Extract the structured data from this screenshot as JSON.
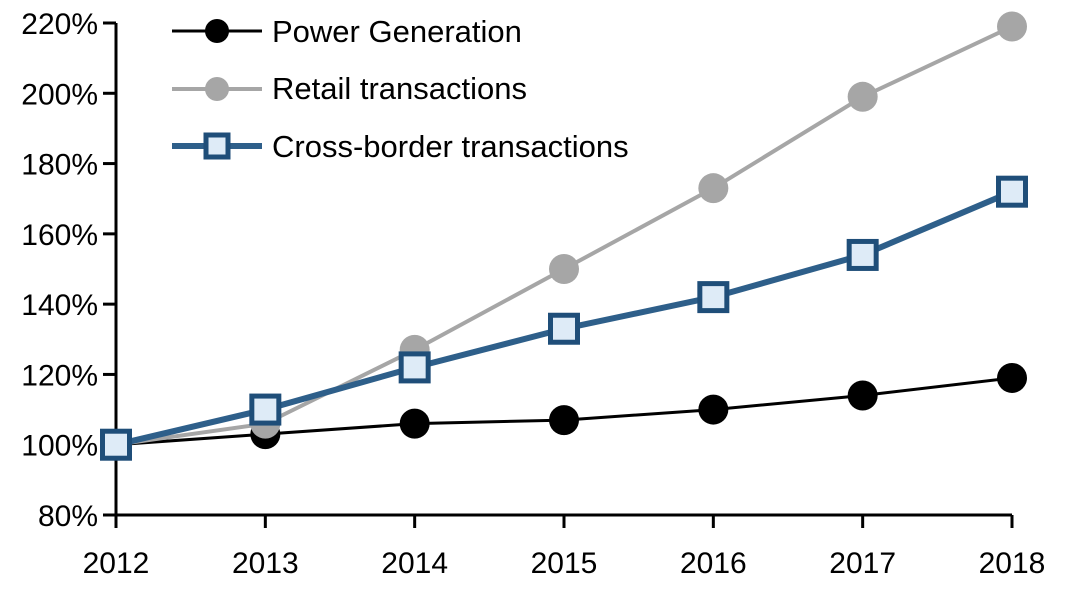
{
  "chart_data": {
    "type": "line",
    "title": "",
    "xlabel": "",
    "ylabel": "",
    "x": [
      2012,
      2013,
      2014,
      2015,
      2016,
      2017,
      2018
    ],
    "x_tick_labels": [
      "2012",
      "2013",
      "2014",
      "2015",
      "2016",
      "2017",
      "2018"
    ],
    "ylim": [
      80,
      220
    ],
    "y_ticks": [
      80,
      100,
      120,
      140,
      160,
      180,
      200,
      220
    ],
    "y_tick_labels": [
      "80%",
      "100%",
      "120%",
      "140%",
      "160%",
      "180%",
      "200%",
      "220%"
    ],
    "grid": false,
    "legend_position": "top-left-inside",
    "axis_color": "#000000",
    "series": [
      {
        "name": "Power Generation",
        "values": [
          100,
          103,
          106,
          107,
          110,
          114,
          119
        ],
        "line_color": "#000000",
        "line_width": 3,
        "marker": "circle",
        "marker_fill": "#000000",
        "marker_border": "#000000"
      },
      {
        "name": "Retail transactions",
        "values": [
          100,
          106,
          127,
          150,
          173,
          199,
          219
        ],
        "line_color": "#A6A6A6",
        "line_width": 4,
        "marker": "circle",
        "marker_fill": "#A6A6A6",
        "marker_border": "#A6A6A6"
      },
      {
        "name": "Cross-border transactions",
        "values": [
          100,
          110,
          122,
          133,
          142,
          154,
          172
        ],
        "line_color": "#2E5F8A",
        "line_width": 6,
        "marker": "square",
        "marker_fill": "#DEEBF7",
        "marker_border": "#1F4E79"
      }
    ]
  }
}
